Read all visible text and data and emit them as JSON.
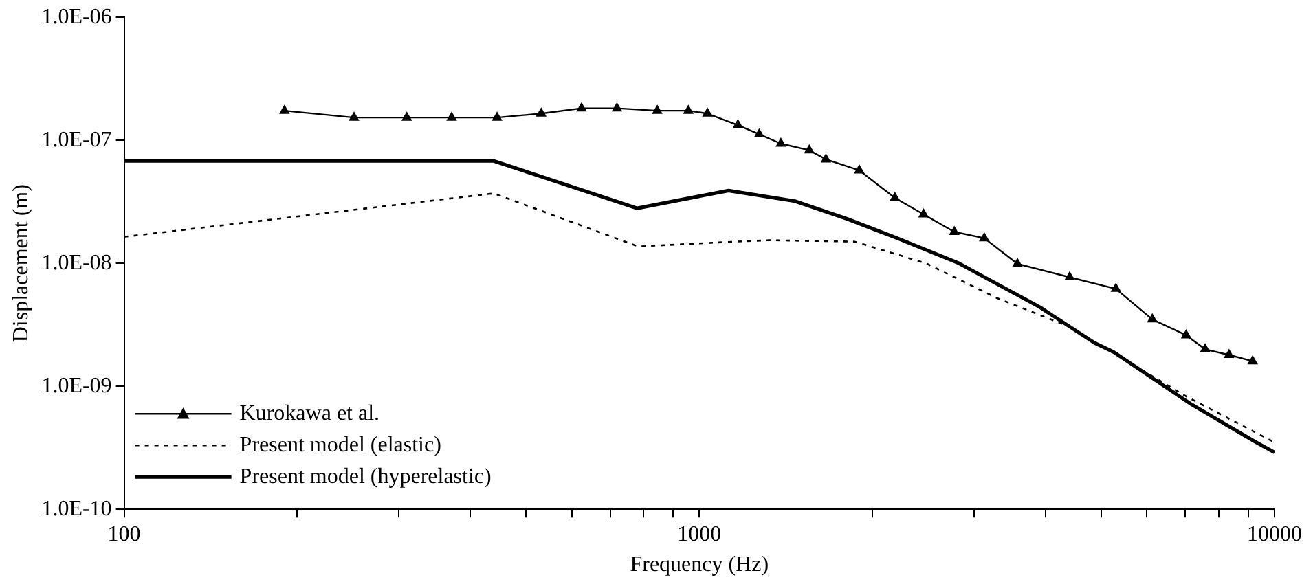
{
  "chart_data": {
    "type": "line",
    "xlabel": "Frequency (Hz)",
    "ylabel": "Displacement (m)",
    "log": "xy",
    "grid": false,
    "legend": "bottom left",
    "xlim": [
      100,
      10000
    ],
    "ylim": [
      1e-10,
      1e-06
    ],
    "xticks": [
      100,
      {
        "value": 200,
        "label": null
      },
      {
        "value": 300,
        "label": null
      },
      {
        "value": 400,
        "label": null
      },
      {
        "value": 500,
        "label": null
      },
      {
        "value": 600,
        "label": null
      },
      {
        "value": 700,
        "label": null
      },
      {
        "value": 800,
        "label": null
      },
      {
        "value": 900,
        "label": null
      },
      1000,
      {
        "value": 2000,
        "label": null
      },
      {
        "value": 3000,
        "label": null
      },
      {
        "value": 4000,
        "label": null
      },
      {
        "value": 5000,
        "label": null
      },
      {
        "value": 6000,
        "label": null
      },
      {
        "value": 7000,
        "label": null
      },
      {
        "value": 8000,
        "label": null
      },
      {
        "value": 9000,
        "label": null
      },
      10000
    ],
    "yticks": [
      {
        "value": 1e-10,
        "label": "1.0E-10"
      },
      {
        "value": 1e-09,
        "label": "1.0E-09"
      },
      {
        "value": 1e-08,
        "label": "1.0E-08"
      },
      {
        "value": 1e-07,
        "label": "1.0E-07"
      },
      {
        "value": 1e-06,
        "label": "1.0E-06"
      }
    ],
    "series": [
      {
        "name": "Kurokawa et al.",
        "color": "#000000",
        "marker": "triangle",
        "line_style": "solid",
        "x": [
          190,
          251,
          310,
          371,
          445,
          531,
          624,
          719,
          845,
          957,
          1033,
          1167,
          1271,
          1386,
          1553,
          1660,
          1897,
          2188,
          2454,
          2775,
          3129,
          3573,
          4404,
          5299,
          6131,
          7022,
          7575,
          8335,
          9162
        ],
        "values": [
          1.74e-07,
          1.53e-07,
          1.53e-07,
          1.53e-07,
          1.53e-07,
          1.65e-07,
          1.82e-07,
          1.82e-07,
          1.74e-07,
          1.74e-07,
          1.65e-07,
          1.33e-07,
          1.12e-07,
          9.4e-08,
          8.3e-08,
          7e-08,
          5.7e-08,
          3.4e-08,
          2.5e-08,
          1.8e-08,
          1.6e-08,
          9.9e-09,
          7.7e-09,
          6.2e-09,
          3.5e-09,
          2.6e-09,
          2e-09,
          1.8e-09,
          1.6e-09
        ]
      },
      {
        "name": "Present model (elastic)",
        "color": "#000000",
        "marker": "none",
        "line_style": "dotted",
        "x": [
          100,
          439,
          783,
          1156,
          1321,
          1862,
          2478,
          3296,
          4385,
          7047,
          10000
        ],
        "values": [
          1.64e-08,
          3.7e-08,
          1.37e-08,
          1.5e-08,
          1.54e-08,
          1.5e-08,
          1e-08,
          5.2e-09,
          3.07e-09,
          8.2e-10,
          3.5e-10
        ]
      },
      {
        "name": "Present model (hyperelastic)",
        "color": "#000000",
        "marker": "none",
        "line_style": "solid",
        "x": [
          100,
          439,
          780,
          1124,
          1466,
          1806,
          2208,
          2827,
          3908,
          4866,
          5253,
          7181,
          9291,
          10000
        ],
        "values": [
          6.8e-08,
          6.8e-08,
          2.8e-08,
          3.9e-08,
          3.2e-08,
          2.3e-08,
          1.6e-08,
          1e-08,
          4.4e-09,
          2.25e-09,
          1.9e-09,
          7.1e-10,
          3.5e-10,
          2.9e-10
        ]
      }
    ]
  }
}
